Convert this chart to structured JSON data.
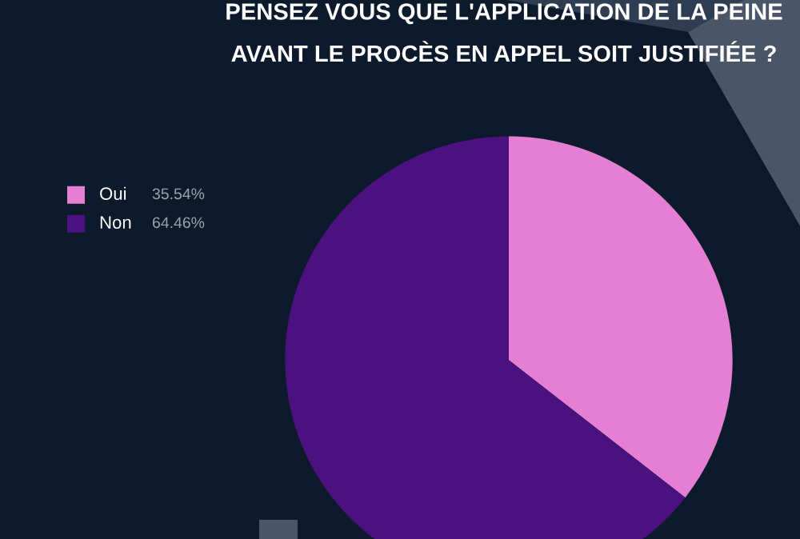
{
  "chart_data": {
    "type": "pie",
    "title": "PENSEZ VOUS QUE L'APPLICATION DE LA PEINE\nAVANT LE PROCÈS EN APPEL SOIT JUSTIFIÉE ?",
    "categories": [
      "Oui",
      "Non"
    ],
    "values": [
      35.54,
      64.46
    ],
    "value_labels": [
      "35.54%",
      "64.46%"
    ],
    "colors": [
      "#e57fd3",
      "#4a117f"
    ],
    "legend": "left"
  }
}
